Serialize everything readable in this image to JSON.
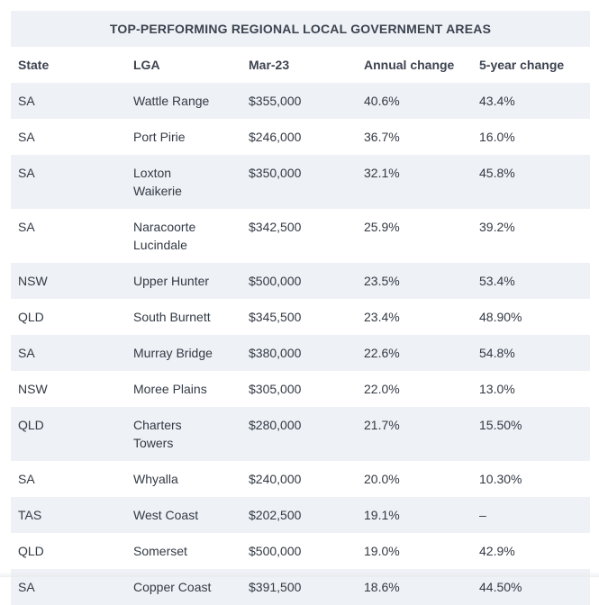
{
  "table": {
    "title": "TOP-PERFORMING REGIONAL LOCAL GOVERNMENT AREAS",
    "headers": [
      "State",
      "LGA",
      "Mar-23",
      "Annual change",
      "5-year change"
    ],
    "rows": [
      [
        "SA",
        "Wattle Range",
        "$355,000",
        "40.6%",
        "43.4%"
      ],
      [
        "SA",
        "Port Pirie",
        "$246,000",
        "36.7%",
        "16.0%"
      ],
      [
        "SA",
        "Loxton Waikerie",
        "$350,000",
        "32.1%",
        "45.8%"
      ],
      [
        "SA",
        "Naracoorte Lucindale",
        "$342,500",
        "25.9%",
        "39.2%"
      ],
      [
        "NSW",
        "Upper Hunter",
        "$500,000",
        "23.5%",
        "53.4%"
      ],
      [
        "QLD",
        "South Burnett",
        "$345,500",
        "23.4%",
        "48.90%"
      ],
      [
        "SA",
        "Murray Bridge",
        "$380,000",
        "22.6%",
        "54.8%"
      ],
      [
        "NSW",
        "Moree Plains",
        "$305,000",
        "22.0%",
        "13.0%"
      ],
      [
        "QLD",
        "Charters Towers",
        "$280,000",
        "21.7%",
        "15.50%"
      ],
      [
        "SA",
        "Whyalla",
        "$240,000",
        "20.0%",
        "10.30%"
      ],
      [
        "TAS",
        "West Coast",
        "$202,500",
        "19.1%",
        "–"
      ],
      [
        "QLD",
        "Somerset",
        "$500,000",
        "19.0%",
        "42.9%"
      ],
      [
        "SA",
        "Copper Coast",
        "$391,500",
        "18.6%",
        "44.50%"
      ]
    ]
  }
}
